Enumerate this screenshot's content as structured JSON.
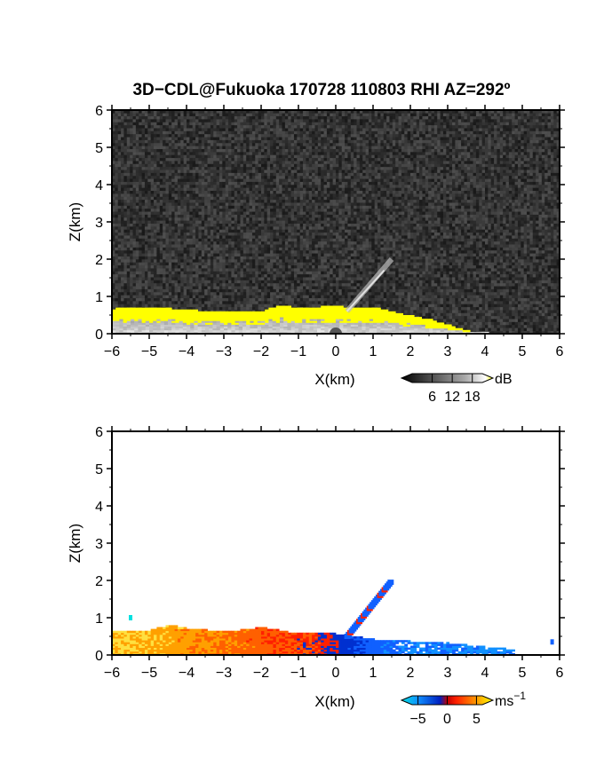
{
  "figure": {
    "title": "3D−CDL@Fukuoka 170728 110803 RHI AZ=292º"
  },
  "chart_data": [
    {
      "type": "heatmap",
      "quantity": "SNR",
      "xlabel": "X(km)",
      "ylabel": "Z(km)",
      "xlim": [
        -6,
        6
      ],
      "ylim": [
        0,
        6
      ],
      "xticks": [
        -6,
        -5,
        -4,
        -3,
        -2,
        -1,
        0,
        1,
        2,
        3,
        4,
        5,
        6
      ],
      "yticks": [
        0,
        1,
        2,
        3,
        4,
        5,
        6
      ],
      "colorbar": {
        "unit": "dB",
        "ticks": [
          6,
          12,
          18
        ],
        "colors": [
          "#000000",
          "#555555",
          "#aaaaaa",
          "#ffffff",
          "#ffff00"
        ]
      },
      "background": "noise (dark gray)",
      "echo_top_km": [
        [
          -6.0,
          0.65
        ],
        [
          -5.0,
          0.68
        ],
        [
          -4.0,
          0.62
        ],
        [
          -3.0,
          0.55
        ],
        [
          -2.0,
          0.6
        ],
        [
          -1.5,
          0.75
        ],
        [
          -1.0,
          0.65
        ],
        [
          -0.5,
          0.7
        ],
        [
          0.0,
          0.72
        ],
        [
          0.5,
          0.65
        ],
        [
          1.0,
          0.68
        ],
        [
          1.5,
          0.55
        ],
        [
          2.0,
          0.45
        ],
        [
          2.5,
          0.35
        ],
        [
          3.0,
          0.2
        ],
        [
          3.5,
          0.05
        ]
      ],
      "beam_streak": {
        "from": [
          0.3,
          0.6
        ],
        "to": [
          1.5,
          2.0
        ]
      }
    },
    {
      "type": "heatmap",
      "quantity": "Doppler velocity",
      "xlabel": "X(km)",
      "ylabel": "Z(km)",
      "xlim": [
        -6,
        6
      ],
      "ylim": [
        0,
        6
      ],
      "xticks": [
        -6,
        -5,
        -4,
        -3,
        -2,
        -1,
        0,
        1,
        2,
        3,
        4,
        5,
        6
      ],
      "yticks": [
        0,
        1,
        2,
        3,
        4,
        5,
        6
      ],
      "colorbar": {
        "unit": "ms",
        "unit_exponent": "−1",
        "ticks": [
          "−5",
          "0",
          "5"
        ],
        "range": [
          -6,
          6
        ],
        "colors": [
          "#00e0e0",
          "#1060ff",
          "#0020c0",
          "#ff0000",
          "#ff8000",
          "#ffff00"
        ]
      },
      "echo_top_km": [
        [
          -6.0,
          0.65
        ],
        [
          -5.0,
          0.65
        ],
        [
          -4.5,
          0.78
        ],
        [
          -4.0,
          0.7
        ],
        [
          -3.0,
          0.6
        ],
        [
          -2.0,
          0.72
        ],
        [
          -1.0,
          0.55
        ],
        [
          0.0,
          0.55
        ],
        [
          1.0,
          0.4
        ],
        [
          2.0,
          0.35
        ],
        [
          3.0,
          0.3
        ],
        [
          4.0,
          0.2
        ],
        [
          4.5,
          0.15
        ]
      ],
      "velocity_at_x": [
        [
          -6.0,
          4.5
        ],
        [
          -4.0,
          3.0
        ],
        [
          -2.0,
          1.5
        ],
        [
          -0.5,
          0.5
        ],
        [
          0.0,
          -0.5
        ],
        [
          1.0,
          -3.0
        ],
        [
          2.0,
          -4.0
        ],
        [
          4.0,
          -4.5
        ]
      ],
      "beam_streak": {
        "from": [
          0.3,
          0.5
        ],
        "to": [
          1.5,
          2.0
        ]
      },
      "isolated_points": [
        [
          -5.5,
          1.0,
          -5.5
        ],
        [
          5.8,
          0.35,
          -4.0
        ]
      ]
    }
  ]
}
